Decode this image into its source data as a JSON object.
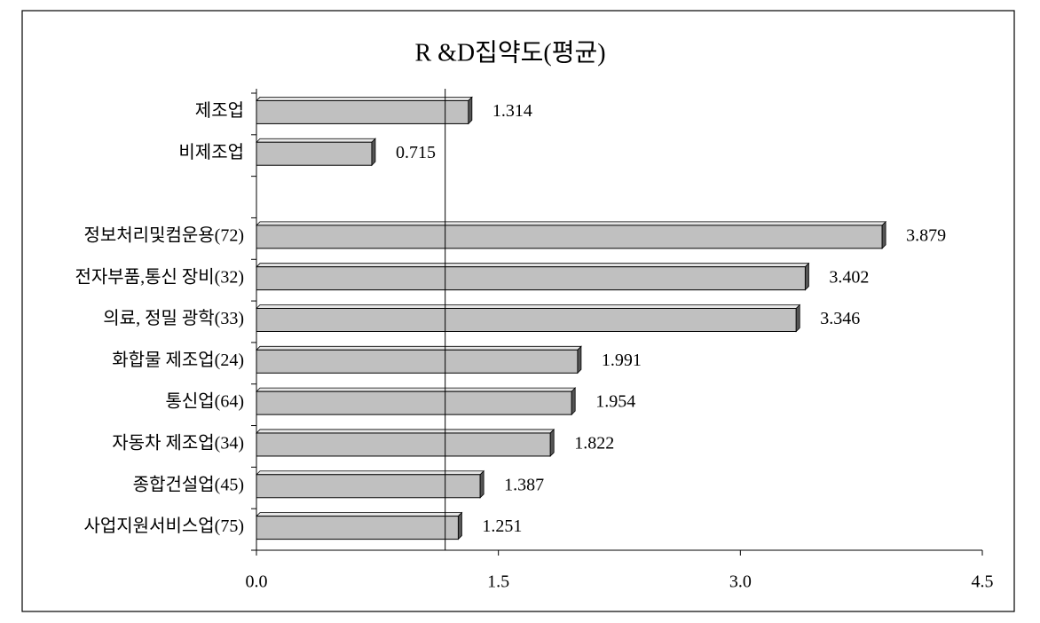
{
  "chart_data": {
    "type": "bar",
    "orientation": "horizontal",
    "title": "R &D집약도(평균)",
    "categories": [
      "제조업",
      "비제조업",
      null,
      "정보처리및컴운용(72)",
      "전자부품,통신 장비(32)",
      "의료, 정밀 광학(33)",
      "화합물 제조업(24)",
      "통신업(64)",
      "자동차 제조업(34)",
      "종합건설업(45)",
      "사업지원서비스업(75)"
    ],
    "values": [
      1.314,
      0.715,
      null,
      3.879,
      3.402,
      3.346,
      1.991,
      1.954,
      1.822,
      1.387,
      1.251
    ],
    "color": "#c0c0c0",
    "reference_value": 1.17,
    "xlim": [
      0,
      4.5
    ],
    "xticks": [
      {
        "value": 0,
        "label": "0.0"
      },
      1.5,
      {
        "value": 3,
        "label": "3.0"
      },
      4.5
    ],
    "grid": false
  }
}
